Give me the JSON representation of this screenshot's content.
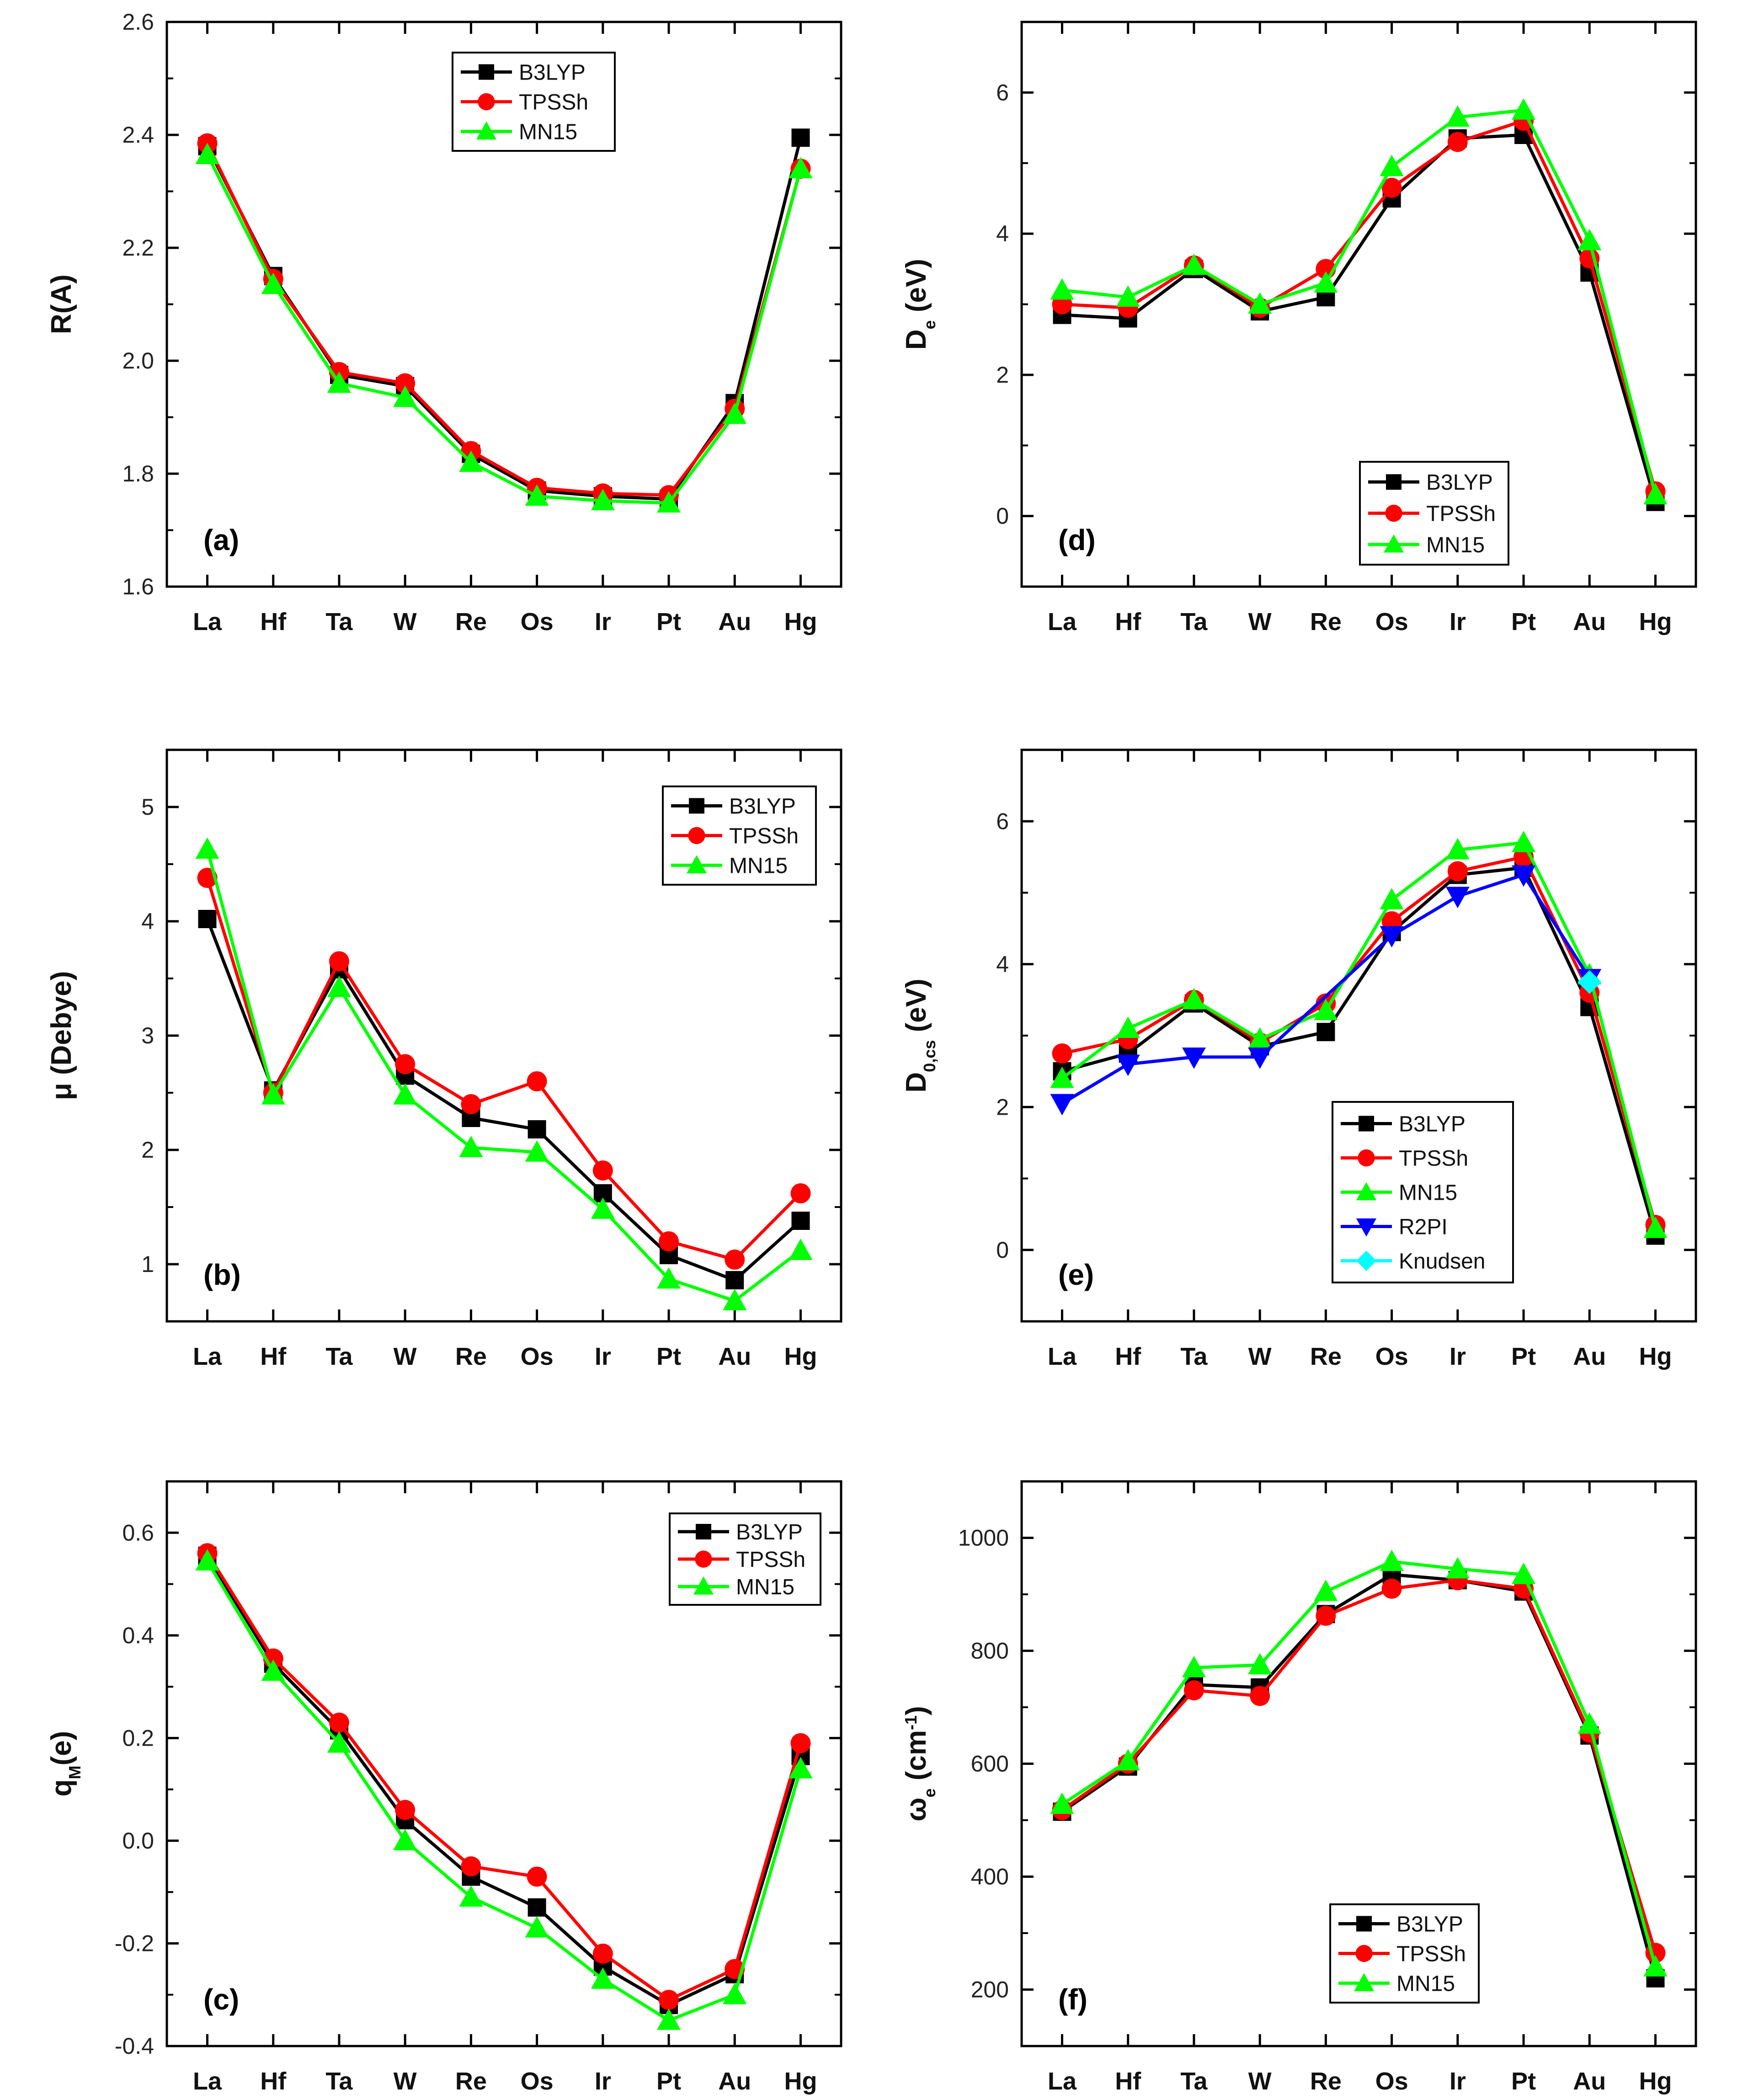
{
  "figure": {
    "background": "#ffffff",
    "axis_color": "#000000"
  },
  "series_styles": {
    "B3LYP": {
      "color": "#000000",
      "marker": "square"
    },
    "TPSSh": {
      "color": "#ff0000",
      "marker": "circle"
    },
    "MN15": {
      "color": "#00ff00",
      "marker": "triangle-up"
    },
    "R2PI": {
      "color": "#0000ff",
      "marker": "triangle-down"
    },
    "Knudsen": {
      "color": "#00ffff",
      "marker": "diamond"
    }
  },
  "chart_data": [
    {
      "id": "a",
      "type": "line",
      "panel_label": "(a)",
      "ylabel": "R(A)",
      "ylabel_sub": "",
      "categories": [
        "La",
        "Hf",
        "Ta",
        "W",
        "Re",
        "Os",
        "Ir",
        "Pt",
        "Au",
        "Hg"
      ],
      "ylim": [
        1.6,
        2.6
      ],
      "yticks": [
        1.6,
        1.8,
        2.0,
        2.2,
        2.4,
        2.6
      ],
      "ytick_labels": [
        "1.6",
        "1.8",
        "2.0",
        "2.2",
        "2.4",
        "2.6"
      ],
      "legend_position": "top-center",
      "series": [
        {
          "name": "B3LYP",
          "values": [
            2.38,
            2.15,
            1.975,
            1.955,
            1.835,
            1.77,
            1.76,
            1.755,
            1.925,
            2.395
          ]
        },
        {
          "name": "TPSSh",
          "values": [
            2.385,
            2.145,
            1.98,
            1.96,
            1.84,
            1.775,
            1.765,
            1.762,
            1.915,
            2.34
          ]
        },
        {
          "name": "MN15",
          "values": [
            2.365,
            2.135,
            1.96,
            1.935,
            1.82,
            1.76,
            1.752,
            1.748,
            1.905,
            2.34
          ]
        }
      ]
    },
    {
      "id": "d",
      "type": "line",
      "panel_label": "(d)",
      "ylabel": "D",
      "ylabel_sub": "e",
      "ylabel_suffix": " (eV)",
      "categories": [
        "La",
        "Hf",
        "Ta",
        "W",
        "Re",
        "Os",
        "Ir",
        "Pt",
        "Au",
        "Hg"
      ],
      "ylim": [
        -1,
        7
      ],
      "yticks": [
        0,
        2,
        4,
        6
      ],
      "ytick_labels": [
        "0",
        "2",
        "4",
        "6"
      ],
      "legend_position": "bottom-center",
      "series": [
        {
          "name": "B3LYP",
          "values": [
            2.85,
            2.8,
            3.5,
            2.9,
            3.1,
            4.5,
            5.35,
            5.4,
            3.45,
            0.2
          ]
        },
        {
          "name": "TPSSh",
          "values": [
            3.0,
            2.95,
            3.55,
            2.95,
            3.5,
            4.65,
            5.3,
            5.6,
            3.65,
            0.35
          ]
        },
        {
          "name": "MN15",
          "values": [
            3.2,
            3.1,
            3.55,
            3.0,
            3.3,
            4.95,
            5.65,
            5.75,
            3.9,
            0.3
          ]
        }
      ]
    },
    {
      "id": "b",
      "type": "line",
      "panel_label": "(b)",
      "ylabel": "μ (Debye)",
      "ylabel_sub": "",
      "categories": [
        "La",
        "Hf",
        "Ta",
        "W",
        "Re",
        "Os",
        "Ir",
        "Pt",
        "Au",
        "Hg"
      ],
      "ylim": [
        0.5,
        5.5
      ],
      "yticks": [
        1,
        2,
        3,
        4,
        5
      ],
      "ytick_labels": [
        "1",
        "2",
        "3",
        "4",
        "5"
      ],
      "legend_position": "top-right",
      "series": [
        {
          "name": "B3LYP",
          "values": [
            4.02,
            2.52,
            3.58,
            2.65,
            2.28,
            2.18,
            1.62,
            1.08,
            0.86,
            1.38
          ]
        },
        {
          "name": "TPSSh",
          "values": [
            4.38,
            2.5,
            3.65,
            2.75,
            2.4,
            2.6,
            1.82,
            1.2,
            1.04,
            1.62
          ]
        },
        {
          "name": "MN15",
          "values": [
            4.63,
            2.48,
            3.42,
            2.48,
            2.02,
            1.98,
            1.48,
            0.87,
            0.68,
            1.12
          ]
        }
      ]
    },
    {
      "id": "e",
      "type": "line",
      "panel_label": "(e)",
      "ylabel": "D",
      "ylabel_sub": "0,cs",
      "ylabel_suffix": " (eV)",
      "categories": [
        "La",
        "Hf",
        "Ta",
        "W",
        "Re",
        "Os",
        "Ir",
        "Pt",
        "Au",
        "Hg"
      ],
      "ylim": [
        -1,
        7
      ],
      "yticks": [
        0,
        2,
        4,
        6
      ],
      "ytick_labels": [
        "0",
        "2",
        "4",
        "6"
      ],
      "legend_position": "bottom-center",
      "series": [
        {
          "name": "B3LYP",
          "values": [
            2.5,
            2.75,
            3.45,
            2.85,
            3.05,
            4.45,
            5.25,
            5.35,
            3.4,
            0.2
          ]
        },
        {
          "name": "TPSSh",
          "values": [
            2.75,
            2.95,
            3.5,
            2.9,
            3.45,
            4.6,
            5.3,
            5.5,
            3.6,
            0.35
          ]
        },
        {
          "name": "MN15",
          "values": [
            2.4,
            3.1,
            3.5,
            2.95,
            3.35,
            4.9,
            5.6,
            5.7,
            3.85,
            0.3
          ]
        },
        {
          "name": "R2PI",
          "values": [
            2.05,
            2.6,
            2.7,
            2.7,
            null,
            4.4,
            4.95,
            5.25,
            3.8,
            null
          ]
        },
        {
          "name": "Knudsen",
          "values": [
            null,
            null,
            null,
            null,
            null,
            null,
            null,
            null,
            3.75,
            null
          ]
        }
      ]
    },
    {
      "id": "c",
      "type": "line",
      "panel_label": "(c)",
      "ylabel": "q",
      "ylabel_sub": "M",
      "ylabel_suffix": "(e)",
      "categories": [
        "La",
        "Hf",
        "Ta",
        "W",
        "Re",
        "Os",
        "Ir",
        "Pt",
        "Au",
        "Hg"
      ],
      "ylim": [
        -0.4,
        0.7
      ],
      "yticks": [
        -0.4,
        -0.2,
        0.0,
        0.2,
        0.4,
        0.6
      ],
      "ytick_labels": [
        "-0.4",
        "-0.2",
        "0.0",
        "0.2",
        "0.4",
        "0.6"
      ],
      "legend_position": "top-right",
      "series": [
        {
          "name": "B3LYP",
          "values": [
            0.555,
            0.345,
            0.215,
            0.04,
            -0.07,
            -0.13,
            -0.245,
            -0.32,
            -0.26,
            0.165
          ]
        },
        {
          "name": "TPSSh",
          "values": [
            0.56,
            0.355,
            0.23,
            0.06,
            -0.05,
            -0.07,
            -0.22,
            -0.31,
            -0.25,
            0.19
          ]
        },
        {
          "name": "MN15",
          "values": [
            0.545,
            0.33,
            0.19,
            0.0,
            -0.11,
            -0.17,
            -0.27,
            -0.35,
            -0.3,
            0.14
          ]
        }
      ]
    },
    {
      "id": "f",
      "type": "line",
      "panel_label": "(f)",
      "ylabel": "ω",
      "ylabel_sub": "e",
      "ylabel_suffix": " (cm",
      "ylabel_sup": "-1",
      "ylabel_end": ")",
      "categories": [
        "La",
        "Hf",
        "Ta",
        "W",
        "Re",
        "Os",
        "Ir",
        "Pt",
        "Au",
        "Hg"
      ],
      "ylim": [
        100,
        1100
      ],
      "yticks": [
        200,
        400,
        600,
        800,
        1000
      ],
      "ytick_labels": [
        "200",
        "400",
        "600",
        "800",
        "1000"
      ],
      "legend_position": "bottom-center",
      "series": [
        {
          "name": "B3LYP",
          "values": [
            515,
            595,
            740,
            735,
            865,
            935,
            925,
            905,
            650,
            220
          ]
        },
        {
          "name": "TPSSh",
          "values": [
            518,
            600,
            730,
            720,
            862,
            910,
            925,
            910,
            655,
            265
          ]
        },
        {
          "name": "MN15",
          "values": [
            528,
            605,
            770,
            775,
            905,
            958,
            945,
            935,
            670,
            240
          ]
        }
      ]
    }
  ]
}
